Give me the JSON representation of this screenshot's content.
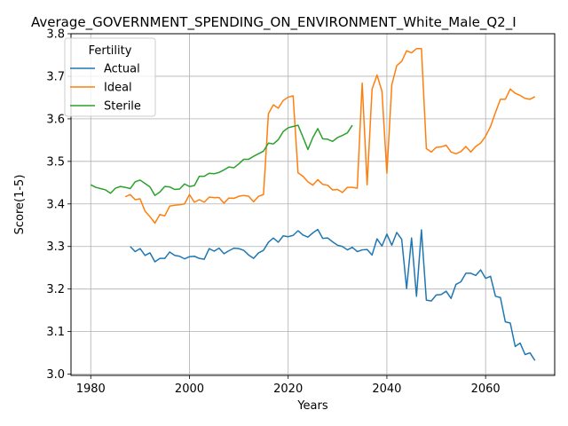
{
  "chart_data": {
    "type": "line",
    "title": "Average_GOVERNMENT_SPENDING_ON_ENVIRONMENT_White_Male_Q2_I",
    "xlabel": "Years",
    "ylabel": "Score(1-5)",
    "xlim": [
      1976,
      2074
    ],
    "ylim": [
      2.997,
      3.8
    ],
    "xticks": [
      1980,
      2000,
      2020,
      2040,
      2060
    ],
    "yticks": [
      3.0,
      3.1,
      3.2,
      3.3,
      3.4,
      3.5,
      3.6,
      3.7,
      3.8
    ],
    "ytick_labels": [
      "3.0",
      "3.1",
      "3.2",
      "3.3",
      "3.4",
      "3.5",
      "3.6",
      "3.7",
      "3.8"
    ],
    "grid": true,
    "legend": {
      "title": "Fertility",
      "placement": "top-left"
    },
    "series": [
      {
        "name": "Actual",
        "color": "#1f77b4",
        "x": [
          1988,
          1989,
          1990,
          1991,
          1992,
          1993,
          1994,
          1995,
          1996,
          1997,
          1998,
          1999,
          2000,
          2001,
          2002,
          2003,
          2004,
          2005,
          2006,
          2007,
          2008,
          2009,
          2010,
          2011,
          2012,
          2013,
          2014,
          2015,
          2016,
          2017,
          2018,
          2019,
          2020,
          2021,
          2022,
          2023,
          2024,
          2025,
          2026,
          2027,
          2028,
          2029,
          2030,
          2031,
          2032,
          2033,
          2034,
          2035,
          2036,
          2037,
          2038,
          2039,
          2040,
          2041,
          2042,
          2043,
          2044,
          2045,
          2046,
          2047,
          2048,
          2049,
          2050,
          2051,
          2052,
          2053,
          2054,
          2055,
          2056,
          2057,
          2058,
          2059,
          2060,
          2061,
          2062,
          2063,
          2064,
          2065,
          2066,
          2067,
          2068,
          2069,
          2070
        ],
        "values": [
          3.3,
          3.288,
          3.295,
          3.279,
          3.285,
          3.264,
          3.272,
          3.272,
          3.287,
          3.279,
          3.277,
          3.271,
          3.276,
          3.277,
          3.272,
          3.27,
          3.295,
          3.289,
          3.296,
          3.283,
          3.29,
          3.296,
          3.295,
          3.291,
          3.28,
          3.272,
          3.285,
          3.291,
          3.31,
          3.32,
          3.31,
          3.325,
          3.323,
          3.326,
          3.337,
          3.327,
          3.322,
          3.332,
          3.34,
          3.319,
          3.32,
          3.311,
          3.303,
          3.3,
          3.292,
          3.298,
          3.288,
          3.292,
          3.293,
          3.28,
          3.318,
          3.301,
          3.329,
          3.303,
          3.333,
          3.317,
          3.201,
          3.32,
          3.183,
          3.339,
          3.174,
          3.172,
          3.186,
          3.187,
          3.195,
          3.178,
          3.211,
          3.217,
          3.237,
          3.237,
          3.232,
          3.245,
          3.225,
          3.23,
          3.183,
          3.18,
          3.123,
          3.12,
          3.065,
          3.073,
          3.046,
          3.05,
          3.032
        ]
      },
      {
        "name": "Ideal",
        "color": "#ff7f0e",
        "x": [
          1987,
          1988,
          1989,
          1990,
          1991,
          1992,
          1993,
          1994,
          1995,
          1996,
          1997,
          1998,
          1999,
          2000,
          2001,
          2002,
          2003,
          2004,
          2005,
          2006,
          2007,
          2008,
          2009,
          2010,
          2011,
          2012,
          2013,
          2014,
          2015,
          2016,
          2017,
          2018,
          2019,
          2020,
          2021,
          2022,
          2023,
          2024,
          2025,
          2026,
          2027,
          2028,
          2029,
          2030,
          2031,
          2032,
          2033,
          2034,
          2035,
          2036,
          2037,
          2038,
          2039,
          2040,
          2041,
          2042,
          2043,
          2044,
          2045,
          2046,
          2047,
          2048,
          2049,
          2050,
          2051,
          2052,
          2053,
          2054,
          2055,
          2056,
          2057,
          2058,
          2059,
          2060,
          2061,
          2062,
          2063,
          2064,
          2065,
          2066,
          2067,
          2068,
          2069,
          2070
        ],
        "values": [
          3.417,
          3.422,
          3.41,
          3.412,
          3.383,
          3.37,
          3.355,
          3.375,
          3.372,
          3.395,
          3.397,
          3.398,
          3.4,
          3.422,
          3.404,
          3.41,
          3.404,
          3.416,
          3.415,
          3.415,
          3.402,
          3.414,
          3.413,
          3.418,
          3.42,
          3.418,
          3.405,
          3.418,
          3.422,
          3.612,
          3.633,
          3.625,
          3.643,
          3.651,
          3.654,
          3.473,
          3.465,
          3.452,
          3.444,
          3.457,
          3.446,
          3.444,
          3.433,
          3.434,
          3.427,
          3.439,
          3.439,
          3.437,
          3.684,
          3.445,
          3.67,
          3.703,
          3.665,
          3.472,
          3.68,
          3.725,
          3.735,
          3.76,
          3.755,
          3.765,
          3.765,
          3.53,
          3.522,
          3.533,
          3.534,
          3.538,
          3.522,
          3.518,
          3.523,
          3.535,
          3.522,
          3.535,
          3.543,
          3.559,
          3.582,
          3.615,
          3.646,
          3.646,
          3.67,
          3.66,
          3.655,
          3.648,
          3.646,
          3.652
        ]
      },
      {
        "name": "Sterile",
        "color": "#2ca02c",
        "x": [
          1980,
          1981,
          1982,
          1983,
          1984,
          1985,
          1986,
          1987,
          1988,
          1989,
          1990,
          1991,
          1992,
          1993,
          1994,
          1995,
          1996,
          1997,
          1998,
          1999,
          2000,
          2001,
          2002,
          2003,
          2004,
          2005,
          2006,
          2007,
          2008,
          2009,
          2010,
          2011,
          2012,
          2013,
          2014,
          2015,
          2016,
          2017,
          2018,
          2019,
          2020,
          2021,
          2022,
          2023,
          2024,
          2025,
          2026,
          2027,
          2028,
          2029,
          2030,
          2031,
          2032,
          2033
        ],
        "values": [
          3.445,
          3.439,
          3.436,
          3.433,
          3.425,
          3.437,
          3.441,
          3.439,
          3.436,
          3.452,
          3.456,
          3.448,
          3.44,
          3.42,
          3.428,
          3.441,
          3.44,
          3.434,
          3.435,
          3.447,
          3.441,
          3.443,
          3.465,
          3.465,
          3.472,
          3.471,
          3.474,
          3.48,
          3.487,
          3.485,
          3.494,
          3.505,
          3.505,
          3.512,
          3.518,
          3.524,
          3.543,
          3.541,
          3.551,
          3.57,
          3.579,
          3.582,
          3.585,
          3.557,
          3.528,
          3.556,
          3.577,
          3.553,
          3.552,
          3.547,
          3.556,
          3.561,
          3.567,
          3.585
        ]
      }
    ]
  }
}
